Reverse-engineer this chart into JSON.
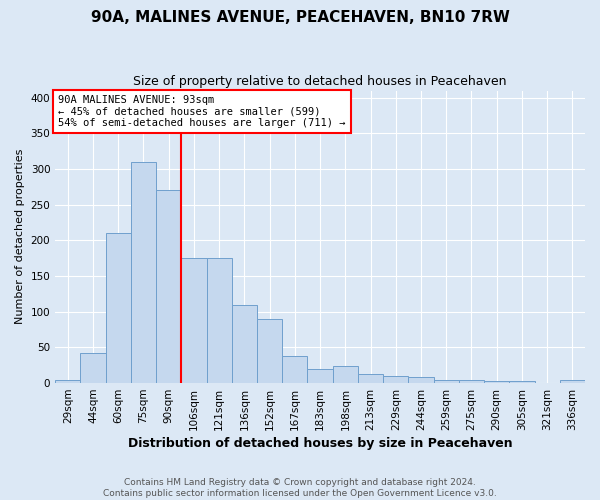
{
  "title": "90A, MALINES AVENUE, PEACEHAVEN, BN10 7RW",
  "subtitle": "Size of property relative to detached houses in Peacehaven",
  "xlabel": "Distribution of detached houses by size in Peacehaven",
  "ylabel": "Number of detached properties",
  "footer_line1": "Contains HM Land Registry data © Crown copyright and database right 2024.",
  "footer_line2": "Contains public sector information licensed under the Open Government Licence v3.0.",
  "annotation_line1": "90A MALINES AVENUE: 93sqm",
  "annotation_line2": "← 45% of detached houses are smaller (599)",
  "annotation_line3": "54% of semi-detached houses are larger (711) →",
  "bar_labels": [
    "29sqm",
    "44sqm",
    "60sqm",
    "75sqm",
    "90sqm",
    "106sqm",
    "121sqm",
    "136sqm",
    "152sqm",
    "167sqm",
    "183sqm",
    "198sqm",
    "213sqm",
    "229sqm",
    "244sqm",
    "259sqm",
    "275sqm",
    "290sqm",
    "305sqm",
    "321sqm",
    "336sqm"
  ],
  "bar_heights": [
    4,
    42,
    210,
    310,
    270,
    175,
    175,
    110,
    90,
    38,
    20,
    24,
    13,
    10,
    8,
    5,
    5,
    3,
    3,
    0,
    4
  ],
  "bar_color": "#c5d8ee",
  "bar_edge_color": "#6fa0cd",
  "red_line_x": 4.5,
  "ylim": [
    0,
    410
  ],
  "yticks": [
    0,
    50,
    100,
    150,
    200,
    250,
    300,
    350,
    400
  ],
  "background_color": "#dce8f5",
  "plot_background": "#dce8f5",
  "grid_color": "#ffffff",
  "title_fontsize": 11,
  "subtitle_fontsize": 9,
  "xlabel_fontsize": 9,
  "ylabel_fontsize": 8,
  "tick_fontsize": 7.5,
  "annotation_fontsize": 7.5,
  "footer_fontsize": 6.5
}
